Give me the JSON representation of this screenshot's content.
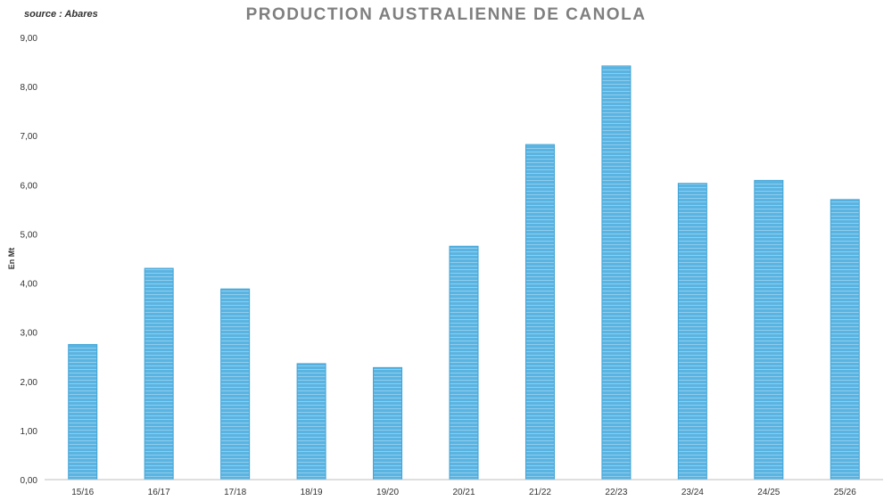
{
  "chart_data": {
    "type": "bar",
    "title": "PRODUCTION AUSTRALIENNE DE CANOLA",
    "source": "source : Abares",
    "xlabel": "",
    "ylabel": "En Mt",
    "categories": [
      "15/16",
      "16/17",
      "17/18",
      "18/19",
      "19/20",
      "20/21",
      "21/22",
      "22/23",
      "23/24",
      "24/25",
      "25/26"
    ],
    "values": [
      2.75,
      4.3,
      3.88,
      2.36,
      2.28,
      4.75,
      6.82,
      8.42,
      6.03,
      6.09,
      5.7
    ],
    "ylim": [
      0,
      9
    ],
    "yticks": [
      "0,00",
      "1,00",
      "2,00",
      "3,00",
      "4,00",
      "5,00",
      "6,00",
      "7,00",
      "8,00",
      "9,00"
    ],
    "grid": false,
    "legend": "none",
    "colors": {
      "bar": "#5ab4e1",
      "bar_edge": "#3ea3d6",
      "stripe": "#8fcdef",
      "axis": "#bfbfbf",
      "title": "#7f7f7f"
    }
  }
}
